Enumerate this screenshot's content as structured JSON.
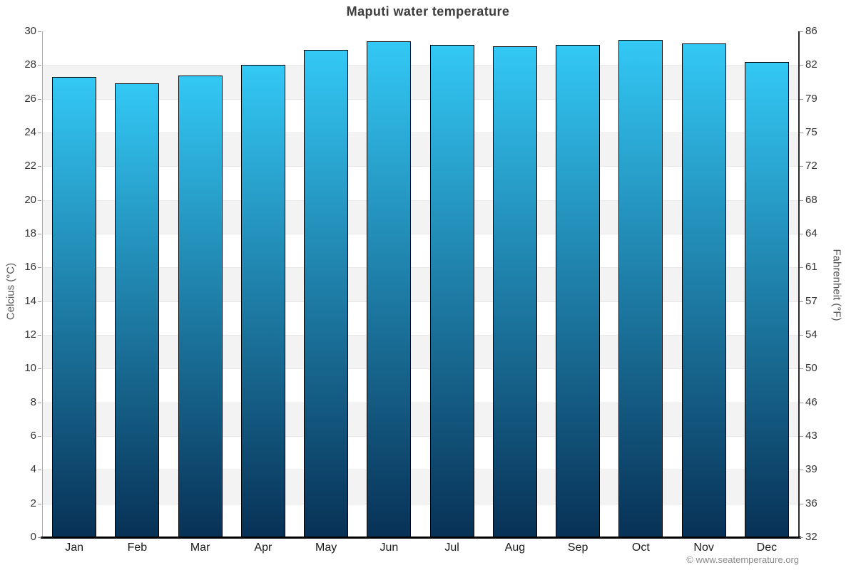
{
  "title": "Maputi water temperature",
  "chart_data": {
    "type": "bar",
    "title": "Maputi water temperature",
    "categories": [
      "Jan",
      "Feb",
      "Mar",
      "Apr",
      "May",
      "Jun",
      "Jul",
      "Aug",
      "Sep",
      "Oct",
      "Nov",
      "Dec"
    ],
    "values": [
      27.3,
      26.9,
      27.4,
      28.0,
      28.9,
      29.4,
      29.2,
      29.1,
      29.2,
      29.5,
      29.3,
      28.2
    ],
    "ylabel_left": "Celcius (°C)",
    "ylabel_right": "Fahrenheit (°F)",
    "ylim": [
      0,
      30
    ],
    "ytick_step": 2,
    "celsius_ticks": [
      30,
      28,
      26,
      24,
      22,
      20,
      18,
      16,
      14,
      12,
      10,
      8,
      6,
      4,
      2,
      0
    ],
    "fahrenheit_ticks": [
      86,
      82,
      79,
      75,
      72,
      68,
      64,
      61,
      57,
      54,
      50,
      46,
      43,
      39,
      36,
      32
    ],
    "gray_band_tops": [
      28,
      24,
      20,
      16,
      12,
      8,
      4
    ],
    "legend_position": "none",
    "grid": "horizontal-bands",
    "colors": {
      "bar_gradient_top": "#33c8f5",
      "bar_gradient_bottom": "#083156",
      "bar_border": "#000000",
      "band": "#f3f3f3",
      "gridline": "#e8e8e8",
      "left_axis_line": "#aaaaaa",
      "right_axis_line": "#2a2a2a",
      "x_axis_line": "#000000",
      "tick_mark": "#999999"
    }
  },
  "footer": {
    "copyright": "© www.seatemperature.org"
  }
}
